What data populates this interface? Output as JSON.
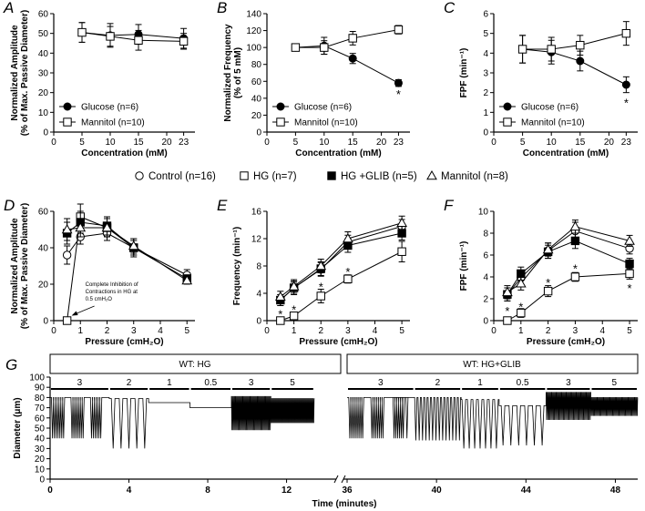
{
  "chart_data": [
    {
      "id": "A",
      "type": "line",
      "panel_label": "A",
      "xlabel": "Concentration (mM)",
      "ylabel": [
        "Normalized Amplitude",
        "(% of Max. Passive Diameter)"
      ],
      "xlim": [
        0,
        25
      ],
      "ylim": [
        0,
        60
      ],
      "xticks": [
        0,
        5,
        10,
        15,
        20,
        23
      ],
      "yticks": [
        0,
        10,
        20,
        30,
        40,
        50,
        60
      ],
      "legend": "bottom-left",
      "series": [
        {
          "name": "Glucose (n=6)",
          "marker": "circle-filled",
          "x": [
            5,
            10,
            15,
            23
          ],
          "y": [
            50.5,
            49,
            49.5,
            47.5
          ],
          "err": [
            5,
            6,
            5,
            5
          ]
        },
        {
          "name": "Mannitol (n=10)",
          "marker": "square-open",
          "x": [
            5,
            10,
            15,
            23
          ],
          "y": [
            50.5,
            48.5,
            46.5,
            46
          ],
          "err": [
            5,
            5,
            5,
            4
          ]
        }
      ],
      "annotations": []
    },
    {
      "id": "B",
      "type": "line",
      "panel_label": "B",
      "xlabel": "Concentration (mM)",
      "ylabel": [
        "Normalized Frequency",
        "(% of 5 mM)"
      ],
      "xlim": [
        0,
        25
      ],
      "ylim": [
        0,
        140
      ],
      "xticks": [
        0,
        5,
        10,
        15,
        20,
        23
      ],
      "yticks": [
        0,
        20,
        40,
        60,
        80,
        100,
        120,
        140
      ],
      "legend": "bottom-left",
      "series": [
        {
          "name": "Glucose (n=6)",
          "marker": "circle-filled",
          "x": [
            5,
            10,
            15,
            23
          ],
          "y": [
            100,
            102,
            87,
            58
          ],
          "err": [
            3,
            10,
            6,
            4
          ]
        },
        {
          "name": "Mannitol (n=10)",
          "marker": "square-open",
          "x": [
            5,
            10,
            15,
            23
          ],
          "y": [
            100,
            100,
            111,
            121
          ],
          "err": [
            3,
            8,
            8,
            5
          ]
        }
      ],
      "annotations": [
        {
          "text": "*",
          "x": 23,
          "y": 45
        }
      ]
    },
    {
      "id": "C",
      "type": "line",
      "panel_label": "C",
      "xlabel": "Concentration (mM)",
      "ylabel": [
        "FPF (min⁻¹)"
      ],
      "xlim": [
        0,
        25
      ],
      "ylim": [
        0,
        6
      ],
      "xticks": [
        0,
        5,
        10,
        15,
        20,
        23
      ],
      "yticks": [
        0,
        1,
        2,
        3,
        4,
        5,
        6
      ],
      "legend": "bottom-left",
      "series": [
        {
          "name": "Glucose (n=6)",
          "marker": "circle-filled",
          "x": [
            5,
            10,
            15,
            23
          ],
          "y": [
            4.2,
            4.05,
            3.6,
            2.4
          ],
          "err": [
            0.7,
            0.6,
            0.5,
            0.4
          ]
        },
        {
          "name": "Mannitol (n=10)",
          "marker": "square-open",
          "x": [
            5,
            10,
            15,
            23
          ],
          "y": [
            4.2,
            4.2,
            4.4,
            5.0
          ],
          "err": [
            0.7,
            0.6,
            0.5,
            0.6
          ]
        }
      ],
      "annotations": [
        {
          "text": "*",
          "x": 23,
          "y": 1.5
        }
      ]
    },
    {
      "id": "D",
      "type": "line",
      "panel_label": "D",
      "xlabel": "Pressure (cmH₂O)",
      "ylabel": [
        "Normalized Amplitude",
        "(% of Max. Passive Diameter)"
      ],
      "xlim": [
        0,
        5.3
      ],
      "ylim": [
        0,
        60
      ],
      "xticks": [
        0,
        1,
        2,
        3,
        4,
        5
      ],
      "yticks": [
        0,
        20,
        40,
        60
      ],
      "series": [
        {
          "name": "Control",
          "marker": "circle-open",
          "x": [
            0.5,
            1,
            2,
            3,
            5
          ],
          "y": [
            36,
            46,
            48,
            40,
            25
          ],
          "err": [
            5,
            4,
            4,
            4,
            3
          ]
        },
        {
          "name": "HG",
          "marker": "square-open",
          "x": [
            0.5,
            1,
            2,
            3,
            5
          ],
          "y": [
            0,
            57,
            51,
            40,
            23
          ],
          "err": [
            0,
            7,
            5,
            4,
            2
          ]
        },
        {
          "name": "HG +GLIB",
          "marker": "square-filled",
          "x": [
            0.5,
            1,
            2,
            3,
            5
          ],
          "y": [
            48,
            54,
            52,
            40,
            23
          ],
          "err": [
            6,
            6,
            5,
            5,
            2
          ]
        },
        {
          "name": "Mannitol",
          "marker": "triangle-open",
          "x": [
            0.5,
            1,
            2,
            3,
            5
          ],
          "y": [
            50,
            51,
            51,
            41,
            22
          ],
          "err": [
            6,
            5,
            5,
            4,
            2
          ]
        }
      ],
      "annotations": [
        {
          "text": [
            "Complete Inhibition of",
            "Contractions in HG at",
            "0.5 cmH₂O"
          ]
        }
      ]
    },
    {
      "id": "E",
      "type": "line",
      "panel_label": "E",
      "xlabel": "Pressure (cmH₂O)",
      "ylabel": [
        "Frequency (min⁻¹)"
      ],
      "xlim": [
        0,
        5.3
      ],
      "ylim": [
        0,
        16
      ],
      "xticks": [
        0,
        1,
        2,
        3,
        4,
        5
      ],
      "yticks": [
        0,
        4,
        8,
        12,
        16
      ],
      "series": [
        {
          "name": "Control",
          "marker": "circle-open",
          "x": [
            0.5,
            1,
            2,
            3,
            5
          ],
          "y": [
            3.0,
            4.8,
            7.5,
            11.5,
            13.8
          ],
          "err": [
            0.8,
            0.8,
            1,
            1,
            1
          ]
        },
        {
          "name": "HG",
          "marker": "square-open",
          "x": [
            0.5,
            1,
            2,
            3,
            5
          ],
          "y": [
            0,
            0.7,
            3.6,
            6.1,
            10.1
          ],
          "err": [
            0,
            0.5,
            1,
            0.6,
            1.5
          ]
        },
        {
          "name": "HG +GLIB",
          "marker": "square-filled",
          "x": [
            0.5,
            1,
            2,
            3,
            5
          ],
          "y": [
            3.0,
            4.8,
            7.6,
            11.0,
            12.8
          ],
          "err": [
            0.8,
            1,
            1,
            1,
            1
          ]
        },
        {
          "name": "Mannitol",
          "marker": "triangle-open",
          "x": [
            0.5,
            1,
            2,
            3,
            5
          ],
          "y": [
            3.5,
            5.0,
            8.0,
            12.0,
            14.3
          ],
          "err": [
            0.8,
            1,
            1,
            1,
            1
          ]
        }
      ],
      "annotations": [
        {
          "text": "*",
          "x": 0.5,
          "y": 1.0
        },
        {
          "text": "*",
          "x": 1,
          "y": 1.7
        },
        {
          "text": "*",
          "x": 2,
          "y": 5.0
        },
        {
          "text": "*",
          "x": 3,
          "y": 7.2
        }
      ]
    },
    {
      "id": "F",
      "type": "line",
      "panel_label": "F",
      "xlabel": "Pressure (cmH₂O)",
      "ylabel": [
        "FPF (min⁻¹)"
      ],
      "xlim": [
        0,
        5.3
      ],
      "ylim": [
        0,
        10
      ],
      "xticks": [
        0,
        1,
        2,
        3,
        4,
        5
      ],
      "yticks": [
        0,
        2,
        4,
        6,
        8,
        10
      ],
      "series": [
        {
          "name": "Control",
          "marker": "circle-open",
          "x": [
            0.5,
            1,
            2,
            3,
            5
          ],
          "y": [
            2.4,
            3.9,
            6.4,
            8.2,
            6.6
          ],
          "err": [
            0.6,
            0.6,
            0.7,
            0.8,
            0.5
          ]
        },
        {
          "name": "HG",
          "marker": "square-open",
          "x": [
            0.5,
            1,
            2,
            3,
            5
          ],
          "y": [
            0,
            0.7,
            2.7,
            4.0,
            4.3
          ],
          "err": [
            0,
            0.4,
            0.5,
            0.4,
            0.5
          ]
        },
        {
          "name": "HG +GLIB",
          "marker": "square-filled",
          "x": [
            0.5,
            1,
            2,
            3,
            5
          ],
          "y": [
            2.4,
            4.3,
            6.3,
            7.3,
            5.2
          ],
          "err": [
            0.6,
            0.6,
            0.6,
            0.7,
            0.5
          ]
        },
        {
          "name": "Mannitol",
          "marker": "triangle-open",
          "x": [
            0.5,
            1,
            2,
            3,
            5
          ],
          "y": [
            2.6,
            3.4,
            6.5,
            8.6,
            7.3
          ],
          "err": [
            0.6,
            0.6,
            0.6,
            0.6,
            0.5
          ]
        }
      ],
      "annotations": [
        {
          "text": "*",
          "x": 0.5,
          "y": 0.9
        },
        {
          "text": "*",
          "x": 1,
          "y": 1.3
        },
        {
          "text": "*",
          "x": 2,
          "y": 3.5
        },
        {
          "text": "*",
          "x": 3,
          "y": 4.8
        },
        {
          "text": "*",
          "x": 5,
          "y": 3.0
        }
      ]
    },
    {
      "id": "G",
      "type": "trace",
      "panel_label": "G",
      "xlabel": "Time (minutes)",
      "ylabel": [
        "Diameter (μm)"
      ],
      "ylim": [
        0,
        100
      ],
      "yticks": [
        0,
        10,
        20,
        30,
        40,
        50,
        60,
        70,
        80,
        90,
        100
      ],
      "left": {
        "header": "WT: HG",
        "xlim": [
          0,
          13.5
        ],
        "xticks": [
          0,
          4,
          8,
          12
        ],
        "segments": [
          {
            "label": "3",
            "start": 0,
            "end": 3.0,
            "base": 80,
            "trough": 40,
            "n": 20,
            "bursty": true
          },
          {
            "label": "2",
            "start": 3.0,
            "end": 5.0,
            "base": 79,
            "trough": 30,
            "n": 5,
            "bursty": false
          },
          {
            "label": "1",
            "start": 5.0,
            "end": 7.1,
            "base": 75,
            "trough": 75,
            "n": 0,
            "bursty": false
          },
          {
            "label": "0.5",
            "start": 7.1,
            "end": 9.2,
            "base": 70,
            "trough": 70,
            "n": 0,
            "bursty": false
          },
          {
            "label": "3",
            "start": 9.2,
            "end": 11.2,
            "base": 81,
            "trough": 48,
            "n": 38,
            "bursty": false
          },
          {
            "label": "5",
            "start": 11.2,
            "end": 13.4,
            "base": 79,
            "trough": 55,
            "n": 48,
            "bursty": false
          }
        ]
      },
      "right": {
        "header": "WT: HG+GLIB",
        "xlim": [
          36,
          49
        ],
        "xticks": [
          36,
          40,
          44,
          48
        ],
        "segments": [
          {
            "label": "3",
            "start": 36,
            "end": 39,
            "base": 80,
            "trough": 40,
            "n": 22,
            "bursty": true
          },
          {
            "label": "2",
            "start": 39,
            "end": 41.1,
            "base": 80,
            "trough": 38,
            "n": 14,
            "bursty": false
          },
          {
            "label": "1",
            "start": 41.1,
            "end": 42.8,
            "base": 78,
            "trough": 30,
            "n": 7,
            "bursty": false
          },
          {
            "label": "0.5",
            "start": 42.8,
            "end": 44.9,
            "base": 72,
            "trough": 33,
            "n": 6,
            "bursty": false
          },
          {
            "label": "3",
            "start": 44.9,
            "end": 46.9,
            "base": 85,
            "trough": 58,
            "n": 40,
            "bursty": false
          },
          {
            "label": "5",
            "start": 46.9,
            "end": 49,
            "base": 80,
            "trough": 62,
            "n": 44,
            "bursty": false
          }
        ]
      }
    }
  ],
  "legend_top": [
    "Glucose (n=6)",
    "Mannitol (n=10)"
  ],
  "legend_mid": [
    {
      "marker": "circle-open",
      "label": "Control (n=16)"
    },
    {
      "marker": "square-open",
      "label": "HG (n=7)"
    },
    {
      "marker": "square-filled",
      "label": "HG +GLIB (n=5)"
    },
    {
      "marker": "triangle-open",
      "label": "Mannitol (n=8)"
    }
  ]
}
